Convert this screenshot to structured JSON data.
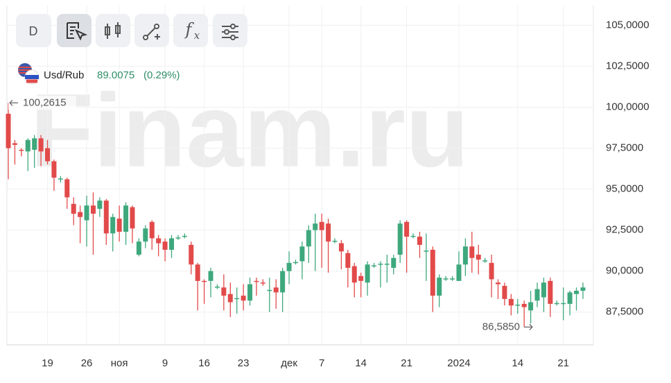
{
  "toolbar": [
    "D",
    "f",
    "x"
  ],
  "ticker": {
    "name": "Usd/Rub",
    "price": 89.0075,
    "change": "(0.29%)"
  },
  "watermark": "Finam.ru",
  "chart_data": {
    "type": "candlestick",
    "categories": [
      null,
      null,
      null,
      null,
      null,
      null,
      "19",
      null,
      null,
      null,
      null,
      null,
      "26",
      null,
      null,
      null,
      null,
      "ноя",
      null,
      null,
      null,
      null,
      null,
      null,
      "9",
      null,
      null,
      null,
      null,
      null,
      "16",
      null,
      null,
      null,
      null,
      null,
      "23",
      null,
      null,
      null,
      null,
      null,
      null,
      "дек",
      null,
      null,
      null,
      null,
      "7",
      null,
      null,
      null,
      null,
      null,
      "14",
      null,
      null,
      null,
      null,
      null,
      null,
      "21",
      null,
      null,
      null,
      null,
      null,
      null,
      null,
      "2024",
      null,
      null,
      null,
      null,
      null,
      null,
      null,
      null,
      "14",
      null,
      null,
      null,
      null,
      null,
      null,
      "21",
      null,
      null,
      null
    ],
    "open": [
      99.6,
      97.8,
      97.4,
      97.3,
      97.4,
      98.1,
      97.5,
      96.7,
      95.6,
      95.6,
      94.1,
      93.6,
      93.1,
      94.0,
      93.8,
      94.3,
      92.3,
      93.2,
      92.4,
      93.9,
      91.0,
      91.8,
      93.0,
      92.0,
      91.8,
      91.3,
      92.0,
      92.1,
      91.6,
      90.4,
      89.4,
      89.4,
      89.0,
      89.0,
      88.6,
      88.3,
      88.5,
      88.2,
      89.4,
      89.3,
      88.8,
      89.0,
      88.7,
      90.0,
      90.5,
      90.6,
      91.5,
      92.5,
      93.0,
      92.9,
      91.8,
      91.7,
      91.1,
      90.3,
      89.7,
      89.3,
      90.3,
      90.4,
      90.4,
      90.2,
      91.0,
      93.0,
      92.1,
      92.1,
      91.2,
      91.3,
      88.5,
      89.5,
      89.5,
      89.4,
      90.4,
      91.5,
      91.0,
      90.6,
      90.5,
      89.3,
      89.1,
      88.3,
      87.9,
      88.0,
      87.6,
      88.2,
      88.4,
      89.4,
      88.0,
      88.0,
      88.0,
      88.6,
      88.8
    ],
    "high": [
      100.2615,
      98.0,
      97.5,
      98.1,
      98.3,
      98.3,
      98.0,
      96.8,
      95.8,
      95.7,
      94.5,
      94.0,
      94.6,
      94.8,
      94.5,
      94.4,
      93.5,
      94.0,
      94.2,
      94.0,
      92.0,
      92.8,
      93.1,
      92.2,
      92.0,
      92.2,
      92.2,
      92.3,
      91.8,
      90.5,
      89.5,
      90.2,
      89.2,
      89.8,
      89.3,
      89.0,
      89.2,
      89.6,
      89.6,
      89.5,
      89.6,
      89.5,
      90.2,
      91.2,
      90.7,
      91.8,
      92.8,
      93.5,
      93.5,
      93.2,
      92.0,
      91.9,
      91.3,
      90.5,
      89.9,
      90.6,
      90.5,
      90.6,
      91.0,
      91.0,
      93.1,
      93.1,
      92.3,
      92.4,
      92.3,
      91.5,
      89.8,
      89.7,
      89.7,
      91.2,
      92.0,
      92.4,
      91.6,
      90.8,
      91.0,
      89.5,
      89.3,
      88.6,
      88.3,
      88.2,
      88.8,
      89.3,
      89.6,
      89.6,
      88.2,
      89.0,
      88.8,
      89.0,
      89.3
    ],
    "low": [
      95.6,
      96.5,
      97.0,
      96.1,
      96.3,
      96.4,
      96.5,
      94.9,
      95.4,
      93.8,
      92.8,
      91.7,
      91.5,
      91.0,
      93.3,
      91.6,
      91.2,
      91.8,
      91.6,
      91.7,
      90.9,
      91.4,
      91.3,
      90.9,
      90.6,
      90.8,
      91.9,
      92.0,
      89.8,
      87.6,
      88.0,
      88.4,
      88.9,
      87.6,
      87.2,
      87.4,
      87.6,
      87.9,
      88.5,
      89.1,
      87.5,
      87.7,
      87.5,
      89.2,
      90.4,
      89.5,
      90.5,
      90.0,
      90.2,
      89.9,
      91.7,
      90.1,
      89.0,
      88.4,
      88.4,
      88.5,
      90.2,
      89.0,
      89.3,
      89.8,
      90.5,
      89.9,
      92.0,
      90.8,
      89.4,
      87.5,
      87.8,
      89.4,
      89.4,
      89.4,
      89.7,
      89.9,
      89.8,
      90.5,
      88.4,
      88.3,
      87.9,
      87.3,
      87.4,
      86.585,
      86.8,
      87.8,
      87.5,
      87.2,
      87.9,
      87.0,
      87.3,
      87.6,
      88.3
    ],
    "close": [
      97.5,
      97.7,
      97.35,
      98.0,
      98.1,
      97.3,
      96.7,
      95.7,
      95.65,
      94.5,
      93.5,
      93.3,
      94.0,
      93.5,
      94.3,
      92.3,
      93.3,
      92.4,
      94.0,
      92.6,
      91.8,
      92.6,
      92.0,
      91.7,
      91.3,
      92.0,
      92.05,
      92.15,
      90.4,
      89.4,
      89.35,
      90.0,
      89.05,
      88.5,
      88.1,
      88.35,
      88.2,
      89.2,
      89.35,
      89.25,
      88.85,
      88.7,
      90.0,
      90.5,
      90.55,
      91.5,
      92.5,
      92.9,
      92.5,
      91.8,
      91.85,
      91.2,
      90.2,
      89.3,
      89.4,
      90.4,
      90.35,
      90.45,
      90.45,
      90.8,
      92.9,
      92.1,
      92.15,
      91.6,
      91.25,
      88.5,
      89.6,
      89.55,
      89.55,
      90.4,
      91.5,
      90.8,
      90.7,
      90.65,
      89.5,
      89.2,
      88.3,
      87.9,
      87.95,
      87.8,
      88.1,
      88.9,
      89.3,
      88.0,
      88.05,
      88.05,
      88.7,
      88.8,
      89.0
    ],
    "up_color": "#3ea87c",
    "down_color": "#e24a4a",
    "ylim": [
      85.5,
      106.2
    ],
    "yticks": [
      {
        "value": 87.5,
        "label": "87,5000"
      },
      {
        "value": 90,
        "label": "90,0000"
      },
      {
        "value": 92.5,
        "label": "92,5000"
      },
      {
        "value": 95,
        "label": "95,0000"
      },
      {
        "value": 97.5,
        "label": "97,5000"
      },
      {
        "value": 100,
        "label": "100,0000"
      },
      {
        "value": 102.5,
        "label": "102,5000"
      },
      {
        "value": 105,
        "label": "105,0000"
      }
    ],
    "annotations": [
      {
        "value": 100.2615,
        "label": "100,2615"
      },
      {
        "value": 86.585,
        "label": "86,5850"
      }
    ],
    "grid": true
  }
}
